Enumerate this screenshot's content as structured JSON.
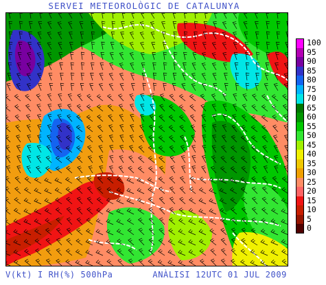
{
  "header": {
    "title": "SERVEI METEOROLÒGIC DE CATALUNYA"
  },
  "footer": {
    "left": "V(kt) I RH(%) 500hPa",
    "right": "ANÀLISI 12UTC 01 JUL 2009"
  },
  "legend": {
    "items": [
      {
        "label": "100",
        "color": "#ff00ff"
      },
      {
        "label": "95",
        "color": "#b400b4"
      },
      {
        "label": "90",
        "color": "#7800a0"
      },
      {
        "label": "85",
        "color": "#3232c8"
      },
      {
        "label": "80",
        "color": "#1464f0"
      },
      {
        "label": "75",
        "color": "#00b4ff"
      },
      {
        "label": "70",
        "color": "#00e6e6"
      },
      {
        "label": "65",
        "color": "#007800"
      },
      {
        "label": "60",
        "color": "#009600"
      },
      {
        "label": "55",
        "color": "#00c800"
      },
      {
        "label": "50",
        "color": "#32e632"
      },
      {
        "label": "45",
        "color": "#a0f000"
      },
      {
        "label": "40",
        "color": "#f0f000"
      },
      {
        "label": "35",
        "color": "#f0c800"
      },
      {
        "label": "30",
        "color": "#f0a000"
      },
      {
        "label": "25",
        "color": "#ff8c64"
      },
      {
        "label": "20",
        "color": "#ff6464"
      },
      {
        "label": "15",
        "color": "#f01414"
      },
      {
        "label": "10",
        "color": "#c81e00"
      },
      {
        "label": "5",
        "color": "#961400"
      },
      {
        "label": "0",
        "color": "#500000"
      }
    ]
  },
  "map": {
    "field": "relative-humidity",
    "overlays": [
      "wind-barbs",
      "coastline-borders"
    ]
  }
}
